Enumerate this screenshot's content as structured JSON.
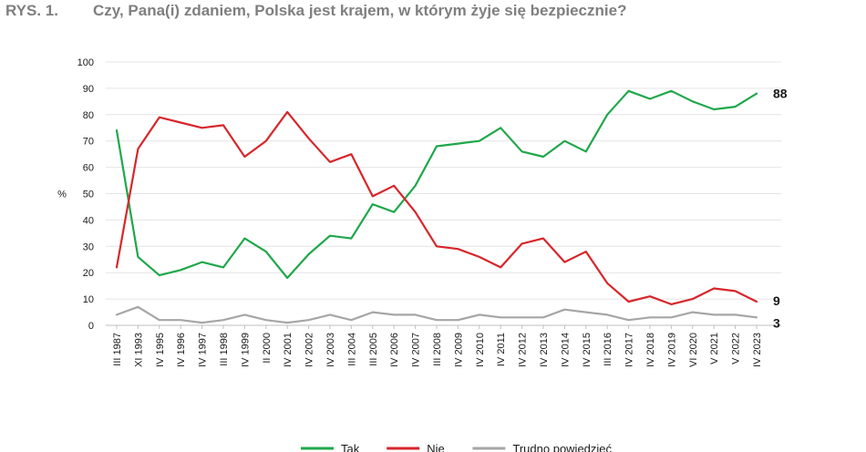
{
  "figure_label": "RYS. 1.",
  "title": "Czy, Pana(i) zdaniem, Polska jest krajem, w którym żyje się bezpiecznie?",
  "colors": {
    "tak": "#1fa74a",
    "nie": "#d7262b",
    "trudno": "#a6a6a6",
    "grid": "#e4e4e4",
    "axis": "#bfbfbf",
    "title": "#7f7f7f"
  },
  "chart_data": {
    "type": "line",
    "title": "Czy, Pana(i) zdaniem, Polska jest krajem, w którym żyje się bezpiecznie?",
    "ylabel": "%",
    "xlabel": "",
    "ylim": [
      0,
      100
    ],
    "yticks": [
      0,
      10,
      20,
      30,
      40,
      50,
      60,
      70,
      80,
      90,
      100
    ],
    "grid": true,
    "legend_position": "bottom",
    "categories": [
      "III 1987",
      "XI 1993",
      "IV 1995",
      "IV 1996",
      "IV 1997",
      "III 1998",
      "IV 1999",
      "II 2000",
      "IV 2001",
      "IV 2002",
      "IV 2003",
      "III 2004",
      "III 2005",
      "IV 2006",
      "IV 2007",
      "III 2008",
      "IV 2009",
      "IV 2010",
      "IV 2011",
      "IV 2012",
      "IV 2013",
      "IV 2014",
      "IV 2015",
      "III 2016",
      "IV 2017",
      "IV 2018",
      "IV 2019",
      "VI 2020",
      "V 2021",
      "V 2022",
      "IV 2023"
    ],
    "series": [
      {
        "name": "Tak",
        "color": "#1fa74a",
        "end_label": "88",
        "values": [
          74,
          26,
          19,
          21,
          24,
          22,
          33,
          28,
          18,
          27,
          34,
          33,
          46,
          43,
          53,
          68,
          69,
          70,
          75,
          66,
          64,
          70,
          66,
          80,
          89,
          86,
          89,
          85,
          82,
          83,
          88
        ]
      },
      {
        "name": "Nie",
        "color": "#d7262b",
        "end_label": "9",
        "values": [
          22,
          67,
          79,
          77,
          75,
          76,
          64,
          70,
          81,
          71,
          62,
          65,
          49,
          53,
          43,
          30,
          29,
          26,
          22,
          31,
          33,
          24,
          28,
          16,
          9,
          11,
          8,
          10,
          14,
          13,
          9
        ]
      },
      {
        "name": "Trudno powiedzieć",
        "color": "#a6a6a6",
        "end_label": "3",
        "values": [
          4,
          7,
          2,
          2,
          1,
          2,
          4,
          2,
          1,
          2,
          4,
          2,
          5,
          4,
          4,
          2,
          2,
          4,
          3,
          3,
          3,
          6,
          5,
          4,
          2,
          3,
          3,
          5,
          4,
          4,
          3
        ]
      }
    ]
  }
}
